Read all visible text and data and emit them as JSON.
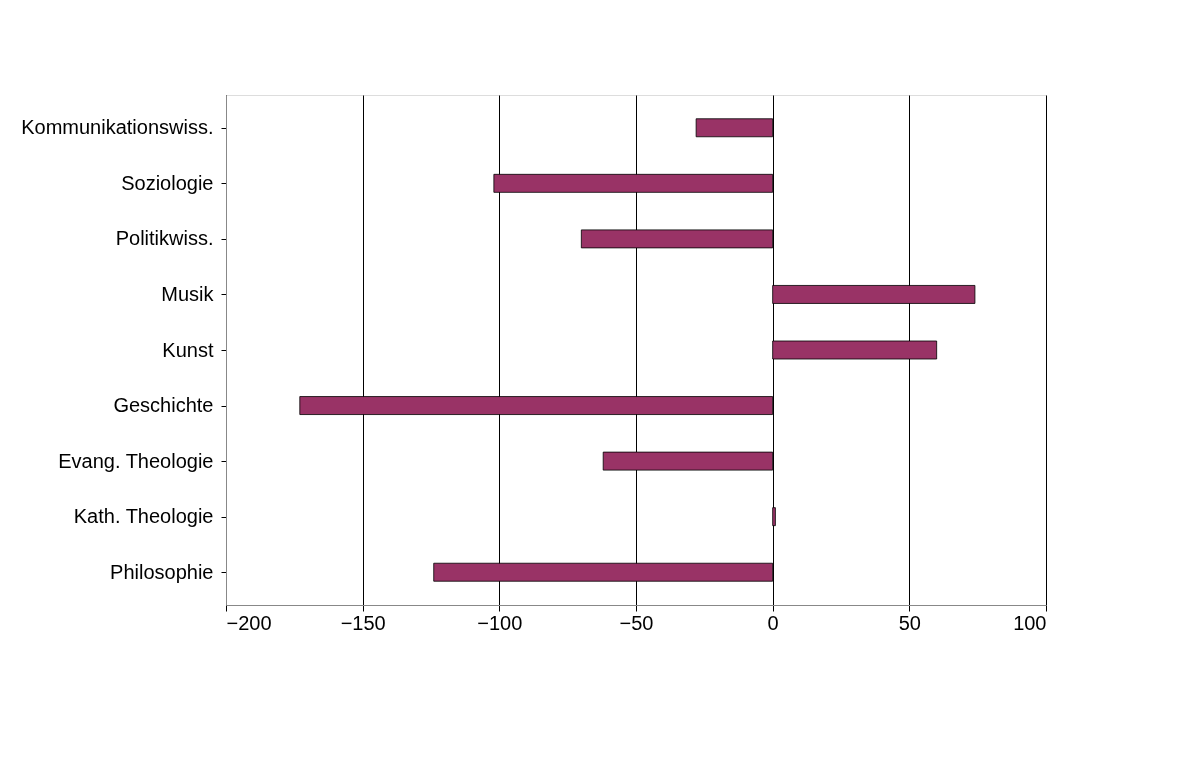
{
  "chart_data": {
    "type": "bar",
    "orientation": "horizontal",
    "categories": [
      "Kommunikationswiss.",
      "Soziologie",
      "Politikwiss.",
      "Musik",
      "Kunst",
      "Geschichte",
      "Evang. Theologie",
      "Kath. Theologie",
      "Philosophie"
    ],
    "values": [
      -28,
      -102,
      -70,
      74,
      60,
      -173,
      -62,
      1,
      -124
    ],
    "color": "#993366",
    "xlim": [
      -200,
      100
    ],
    "xticks": [
      -200,
      -150,
      -100,
      -50,
      0,
      50,
      100
    ],
    "grid": "x"
  }
}
